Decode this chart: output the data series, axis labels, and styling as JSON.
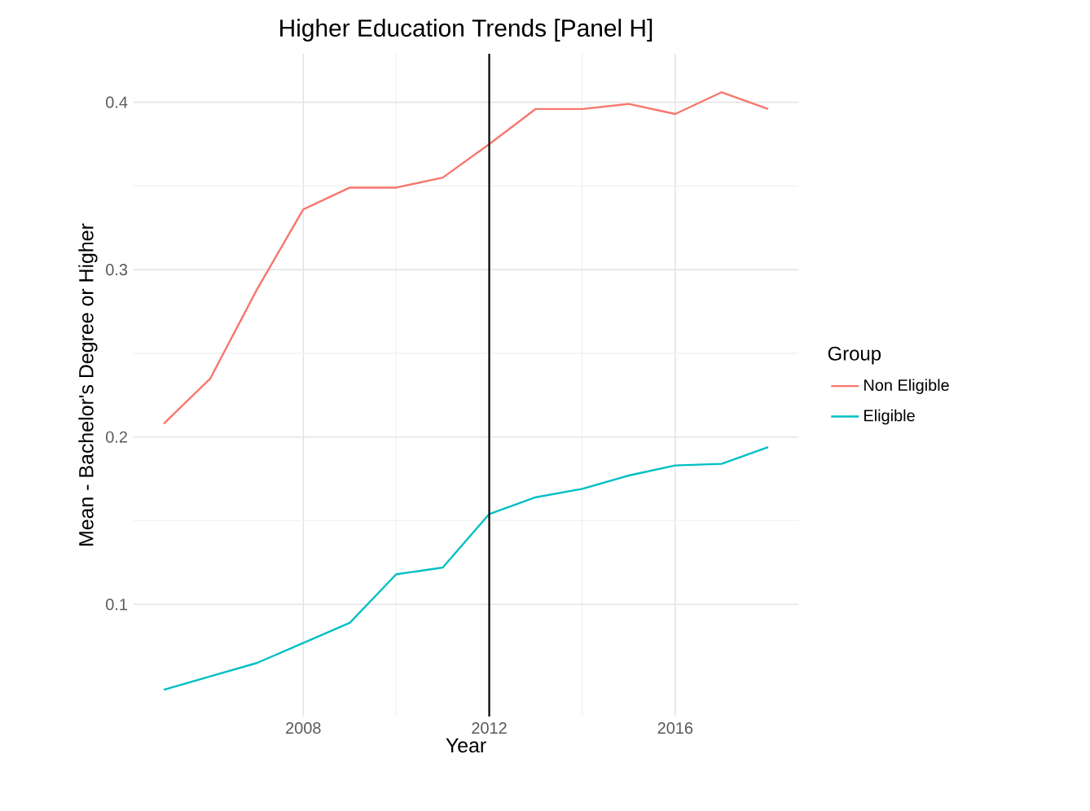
{
  "chart_data": {
    "type": "line",
    "title": "Higher Education Trends [Panel H]",
    "xlabel": "Year",
    "ylabel": "Mean - Bachelor's Degree or Higher",
    "legend_title": "Group",
    "x": [
      2005,
      2006,
      2007,
      2008,
      2009,
      2010,
      2011,
      2012,
      2013,
      2014,
      2015,
      2016,
      2017,
      2018
    ],
    "series": [
      {
        "name": "Non Eligible",
        "color": "#f8766d",
        "values": [
          0.208,
          0.235,
          0.288,
          0.336,
          0.349,
          0.349,
          0.355,
          0.375,
          0.396,
          0.396,
          0.399,
          0.393,
          0.406,
          0.396
        ]
      },
      {
        "name": "Eligible",
        "color": "#00bfc4",
        "values": [
          0.049,
          0.057,
          0.065,
          0.077,
          0.089,
          0.118,
          0.122,
          0.154,
          0.164,
          0.169,
          0.177,
          0.183,
          0.184,
          0.194
        ]
      }
    ],
    "xlim": [
      2004.35,
      2018.65
    ],
    "ylim": [
      0.033,
      0.429
    ],
    "xticks": [
      2008,
      2012,
      2016
    ],
    "yticks": [
      0.1,
      0.2,
      0.3,
      0.4
    ],
    "ref_lines": [
      {
        "axis": "x",
        "value": 2012,
        "color": "#000000"
      }
    ],
    "grid": true,
    "legend": "right",
    "marker": "none",
    "line_style": "solid"
  }
}
